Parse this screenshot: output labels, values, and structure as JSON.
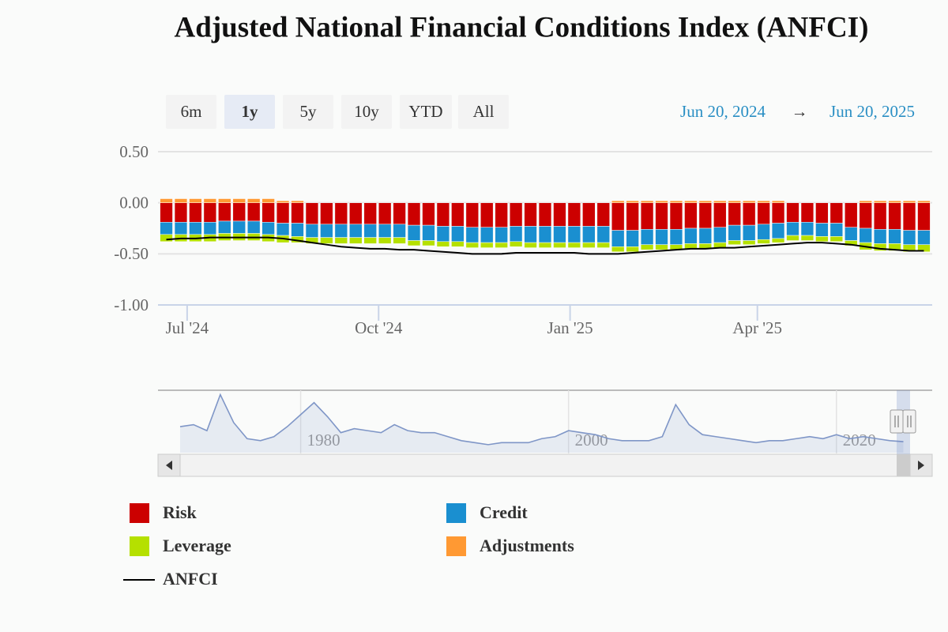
{
  "chart_data": {
    "type": "bar",
    "stacked": true,
    "title": "Adjusted National Financial Conditions Index (ANFCI)",
    "range_buttons": [
      "6m",
      "1y",
      "5y",
      "10y",
      "YTD",
      "All"
    ],
    "selected_range": "1y",
    "range_from": "Jun 20, 2024",
    "range_separator": "→",
    "range_to": "Jun 20, 2025",
    "x": [
      "2024-06-21",
      "2024-06-28",
      "2024-07-05",
      "2024-07-12",
      "2024-07-19",
      "2024-07-26",
      "2024-08-02",
      "2024-08-09",
      "2024-08-16",
      "2024-08-23",
      "2024-08-30",
      "2024-09-06",
      "2024-09-13",
      "2024-09-20",
      "2024-09-27",
      "2024-10-04",
      "2024-10-11",
      "2024-10-18",
      "2024-10-25",
      "2024-11-01",
      "2024-11-08",
      "2024-11-15",
      "2024-11-22",
      "2024-11-29",
      "2024-12-06",
      "2024-12-13",
      "2024-12-20",
      "2024-12-27",
      "2025-01-03",
      "2025-01-10",
      "2025-01-17",
      "2025-01-24",
      "2025-01-31",
      "2025-02-07",
      "2025-02-14",
      "2025-02-21",
      "2025-02-28",
      "2025-03-07",
      "2025-03-14",
      "2025-03-21",
      "2025-03-28",
      "2025-04-04",
      "2025-04-11",
      "2025-04-18",
      "2025-04-25",
      "2025-05-02",
      "2025-05-09",
      "2025-05-16",
      "2025-05-23",
      "2025-05-30",
      "2025-06-06",
      "2025-06-13",
      "2025-06-20"
    ],
    "xlim": [
      "2024-06-17",
      "2025-06-24"
    ],
    "xticks": [
      {
        "value": "2024-07-01",
        "label": "Jul '24"
      },
      {
        "value": "2024-10-01",
        "label": "Oct '24"
      },
      {
        "value": "2025-01-01",
        "label": "Jan '25"
      },
      {
        "value": "2025-04-01",
        "label": "Apr '25"
      }
    ],
    "ylim": [
      -1,
      0.5
    ],
    "yticks": [
      {
        "value": 0.5,
        "label": "0.50"
      },
      {
        "value": 0,
        "label": "0.00"
      },
      {
        "value": -0.5,
        "label": "-0.50"
      },
      {
        "value": -1,
        "label": "-1.00"
      }
    ],
    "grid": true,
    "series": [
      {
        "name": "Risk",
        "type": "bar",
        "color": "#cc0000",
        "values": [
          -0.19,
          -0.19,
          -0.19,
          -0.19,
          -0.18,
          -0.18,
          -0.18,
          -0.19,
          -0.2,
          -0.2,
          -0.21,
          -0.21,
          -0.21,
          -0.21,
          -0.21,
          -0.21,
          -0.21,
          -0.22,
          -0.22,
          -0.23,
          -0.23,
          -0.24,
          -0.24,
          -0.24,
          -0.23,
          -0.23,
          -0.23,
          -0.23,
          -0.23,
          -0.23,
          -0.23,
          -0.27,
          -0.27,
          -0.26,
          -0.26,
          -0.26,
          -0.25,
          -0.25,
          -0.24,
          -0.22,
          -0.22,
          -0.21,
          -0.2,
          -0.19,
          -0.19,
          -0.2,
          -0.2,
          -0.24,
          -0.25,
          -0.26,
          -0.26,
          -0.27,
          -0.27
        ]
      },
      {
        "name": "Credit",
        "type": "bar",
        "color": "#1a8fd0",
        "values": [
          -0.12,
          -0.12,
          -0.12,
          -0.12,
          -0.12,
          -0.12,
          -0.12,
          -0.12,
          -0.12,
          -0.13,
          -0.13,
          -0.13,
          -0.13,
          -0.13,
          -0.13,
          -0.13,
          -0.13,
          -0.15,
          -0.15,
          -0.15,
          -0.15,
          -0.15,
          -0.15,
          -0.15,
          -0.15,
          -0.16,
          -0.16,
          -0.16,
          -0.16,
          -0.16,
          -0.16,
          -0.16,
          -0.16,
          -0.15,
          -0.15,
          -0.15,
          -0.15,
          -0.15,
          -0.15,
          -0.15,
          -0.15,
          -0.15,
          -0.15,
          -0.13,
          -0.13,
          -0.13,
          -0.13,
          -0.13,
          -0.14,
          -0.14,
          -0.14,
          -0.14,
          -0.14
        ]
      },
      {
        "name": "Leverage",
        "type": "bar",
        "color": "#b5e000",
        "values": [
          -0.07,
          -0.07,
          -0.07,
          -0.07,
          -0.07,
          -0.07,
          -0.07,
          -0.07,
          -0.07,
          -0.06,
          -0.06,
          -0.06,
          -0.06,
          -0.06,
          -0.06,
          -0.06,
          -0.06,
          -0.05,
          -0.05,
          -0.05,
          -0.05,
          -0.05,
          -0.05,
          -0.05,
          -0.05,
          -0.05,
          -0.05,
          -0.05,
          -0.05,
          -0.05,
          -0.05,
          -0.05,
          -0.05,
          -0.05,
          -0.05,
          -0.05,
          -0.05,
          -0.05,
          -0.05,
          -0.04,
          -0.04,
          -0.04,
          -0.04,
          -0.05,
          -0.05,
          -0.05,
          -0.05,
          -0.05,
          -0.07,
          -0.07,
          -0.07,
          -0.07,
          -0.07
        ]
      },
      {
        "name": "Adjustments",
        "type": "bar",
        "color": "#ff9933",
        "values": [
          0.04,
          0.04,
          0.04,
          0.04,
          0.04,
          0.04,
          0.04,
          0.04,
          0.02,
          0.02,
          0,
          0,
          0,
          0,
          0,
          0,
          0,
          0,
          0,
          0,
          0,
          0,
          0,
          0,
          0,
          0,
          0,
          0,
          0,
          0,
          0,
          0.02,
          0.02,
          0.02,
          0.02,
          0.02,
          0.02,
          0.02,
          0.02,
          0.02,
          0.02,
          0.02,
          0.02,
          0,
          0,
          0,
          0,
          0,
          0.02,
          0.02,
          0.02,
          0.02,
          0.02
        ]
      },
      {
        "name": "ANFCI",
        "type": "line",
        "color": "#000000",
        "values": [
          -0.36,
          -0.35,
          -0.35,
          -0.34,
          -0.34,
          -0.34,
          -0.34,
          -0.34,
          -0.35,
          -0.37,
          -0.39,
          -0.41,
          -0.43,
          -0.44,
          -0.45,
          -0.45,
          -0.46,
          -0.46,
          -0.47,
          -0.48,
          -0.49,
          -0.5,
          -0.5,
          -0.5,
          -0.49,
          -0.49,
          -0.49,
          -0.49,
          -0.49,
          -0.5,
          -0.5,
          -0.5,
          -0.49,
          -0.48,
          -0.47,
          -0.46,
          -0.45,
          -0.45,
          -0.44,
          -0.44,
          -0.43,
          -0.42,
          -0.41,
          -0.4,
          -0.39,
          -0.39,
          -0.4,
          -0.41,
          -0.43,
          -0.45,
          -0.46,
          -0.47,
          -0.47
        ]
      }
    ],
    "navigator": {
      "x": [
        1971,
        1972,
        1973,
        1974,
        1975,
        1976,
        1977,
        1978,
        1979,
        1980,
        1981,
        1982,
        1983,
        1984,
        1985,
        1986,
        1987,
        1988,
        1989,
        1990,
        1991,
        1992,
        1993,
        1994,
        1995,
        1996,
        1997,
        1998,
        1999,
        2000,
        2001,
        2002,
        2003,
        2004,
        2005,
        2006,
        2007,
        2008,
        2009,
        2010,
        2011,
        2012,
        2013,
        2014,
        2015,
        2016,
        2017,
        2018,
        2019,
        2020,
        2021,
        2022,
        2023,
        2024,
        2025
      ],
      "values": [
        0.3,
        0.4,
        0.1,
        1.9,
        0.5,
        -0.3,
        -0.4,
        -0.2,
        0.3,
        0.9,
        1.5,
        0.8,
        0.0,
        0.2,
        0.1,
        0.0,
        0.4,
        0.1,
        0.0,
        0.0,
        -0.2,
        -0.4,
        -0.5,
        -0.6,
        -0.5,
        -0.5,
        -0.5,
        -0.3,
        -0.2,
        0.1,
        0.0,
        -0.1,
        -0.3,
        -0.4,
        -0.4,
        -0.4,
        -0.2,
        1.4,
        0.4,
        -0.1,
        -0.2,
        -0.3,
        -0.4,
        -0.5,
        -0.4,
        -0.4,
        -0.3,
        -0.2,
        -0.3,
        -0.1,
        -0.3,
        -0.2,
        -0.3,
        -0.4,
        -0.45
      ],
      "xlim": [
        1971,
        2025.5
      ],
      "ylim": [
        -1,
        2
      ],
      "xticks": [
        1980,
        2000,
        2020
      ],
      "color": "#7f96c7"
    }
  }
}
